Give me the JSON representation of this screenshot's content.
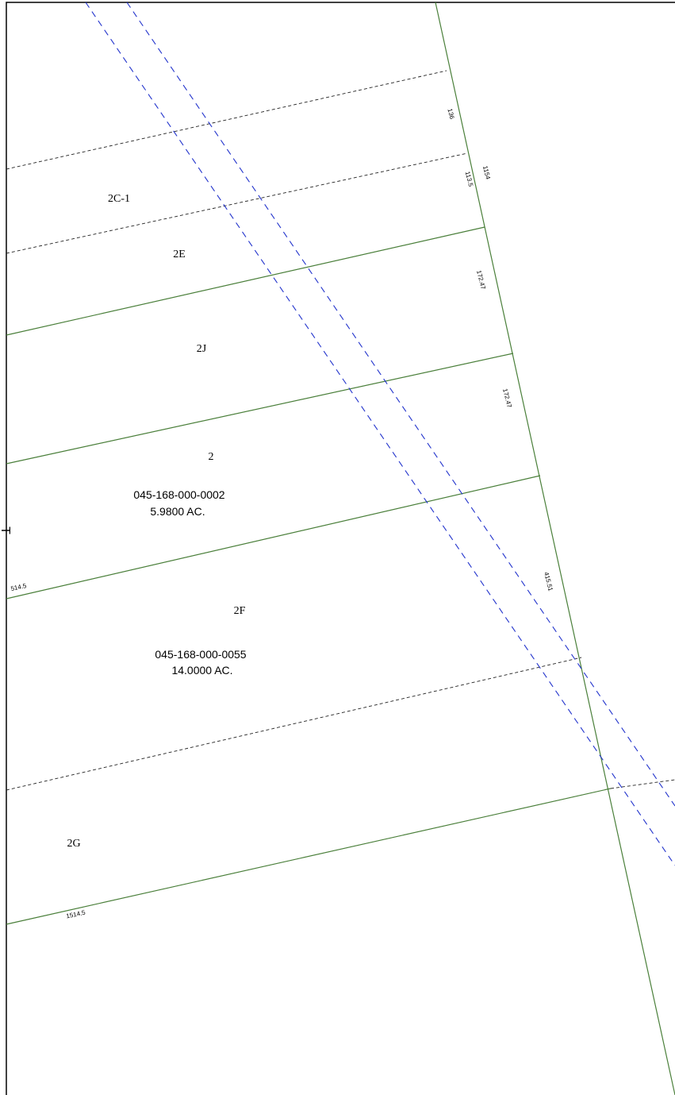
{
  "parcels": {
    "labels": [
      "2C-1",
      "2E",
      "2J",
      "2",
      "2F",
      "2G"
    ],
    "p2": {
      "number": "045-168-000-0002",
      "area": "5.9800 AC."
    },
    "p2f": {
      "number": "045-168-000-0055",
      "area": "14.0000 AC."
    }
  },
  "dimensions": {
    "d136": "136",
    "d113_5": "113.5",
    "d1154": "1154",
    "d172_47_a": "172.47",
    "d172_47_b": "172.47",
    "d415_51": "415.51",
    "d514_5": "514.5",
    "d1514_5": "1514.5"
  },
  "edge_text": "T",
  "colors": {
    "lot_line": "#4a7f3a",
    "easement_line": "#222222",
    "utility_line": "#2233cc"
  }
}
